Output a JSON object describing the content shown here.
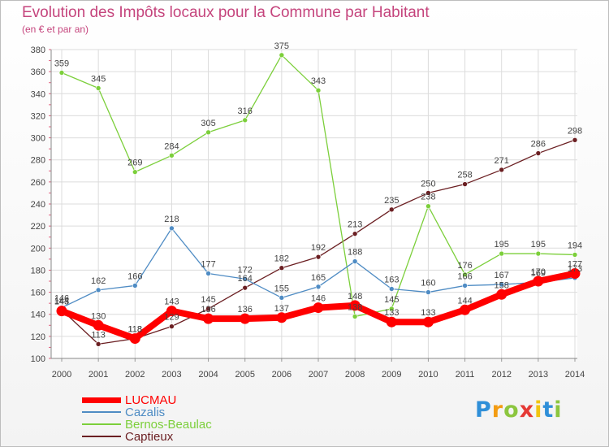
{
  "title": "Evolution des Impôts locaux pour la Commune par Habitant",
  "subtitle": "(en € et par an)",
  "logo": {
    "letters": [
      {
        "char": "P",
        "color": "#2f8fd8"
      },
      {
        "char": "r",
        "color": "#f39c12"
      },
      {
        "char": "o",
        "color": "#8cc63f"
      },
      {
        "char": "x",
        "color": "#e53935"
      },
      {
        "char": "i",
        "color": "#f1c40f"
      },
      {
        "char": "t",
        "color": "#2f8fd8"
      },
      {
        "char": "i",
        "color": "#8cc63f"
      }
    ]
  },
  "chart_data": {
    "type": "line",
    "title": "Evolution des Impôts locaux pour la Commune par Habitant",
    "subtitle": "(en € et par an)",
    "ylim": [
      100,
      380
    ],
    "yticks": [
      100,
      120,
      140,
      160,
      180,
      200,
      220,
      240,
      260,
      280,
      300,
      320,
      340,
      360,
      380
    ],
    "grid": true,
    "legend_position": "bottom-left",
    "categories": [
      "2000",
      "2001",
      "2002",
      "2003",
      "2004",
      "2005",
      "2006",
      "2007",
      "2008",
      "2009",
      "2010",
      "2011",
      "2012",
      "2013",
      "2014"
    ],
    "series": [
      {
        "name": "Captieux",
        "color": "#6b1f22",
        "values": [
          144,
          113,
          118,
          129,
          145,
          164,
          182,
          192,
          213,
          235,
          250,
          258,
          271,
          286,
          298
        ],
        "labels": [
          "144",
          "113",
          "118",
          "129",
          "145",
          "164",
          "182",
          "192",
          "213",
          "235",
          "250",
          "258",
          "271",
          "286",
          "298"
        ]
      },
      {
        "name": "Bernos-Beaulac",
        "color": "#7ccf3b",
        "values": [
          359,
          345,
          269,
          284,
          305,
          316,
          375,
          343,
          138,
          145,
          238,
          176,
          195,
          195,
          194
        ],
        "labels": [
          "359",
          "345",
          "269",
          "284",
          "305",
          "316",
          "375",
          "343",
          "138",
          "145",
          "238",
          "176",
          "195",
          "195",
          "194"
        ]
      },
      {
        "name": "Cazalis",
        "color": "#4f8cc4",
        "values": [
          146,
          162,
          166,
          218,
          177,
          172,
          155,
          165,
          188,
          163,
          160,
          166,
          167,
          169,
          173
        ],
        "labels": [
          "146",
          "162",
          "166",
          "218",
          "177",
          "172",
          "155",
          "165",
          "188",
          "163",
          "160",
          "166",
          "167",
          "169",
          "173"
        ]
      },
      {
        "name": "LUCMAU",
        "color": "#ff0000",
        "values": [
          143,
          130,
          118,
          143,
          136,
          136,
          137,
          146,
          148,
          133,
          133,
          144,
          158,
          170,
          177
        ],
        "labels": [
          "143",
          "130",
          "118",
          "143",
          "136",
          "136",
          "137",
          "146",
          "148",
          "133",
          "133",
          "144",
          "158",
          "170",
          "177"
        ]
      }
    ]
  },
  "legend": [
    {
      "name": "LUCMAU",
      "color": "#ff0000",
      "thickness": 7
    },
    {
      "name": "Cazalis",
      "color": "#4f8cc4",
      "thickness": 2
    },
    {
      "name": "Bernos-Beaulac",
      "color": "#7ccf3b",
      "thickness": 2
    },
    {
      "name": "Captieux",
      "color": "#6b1f22",
      "thickness": 2
    }
  ]
}
